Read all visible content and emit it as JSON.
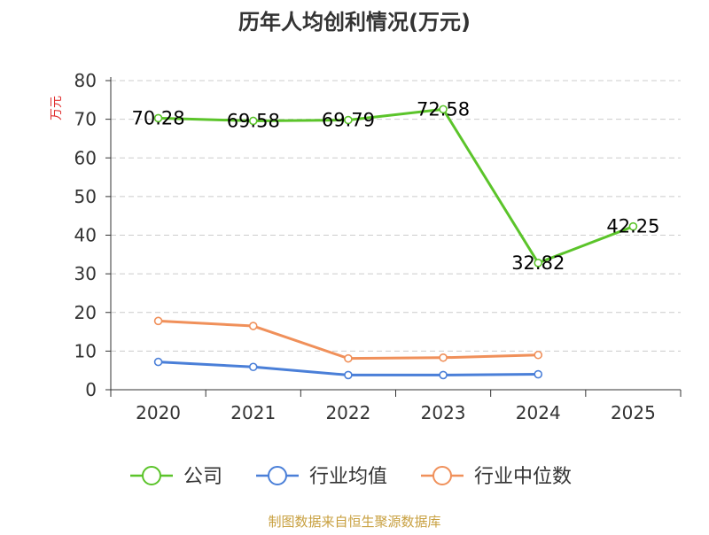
{
  "chart_data": {
    "type": "line",
    "title": "历年人均创利情况(万元)",
    "ylabel": "万元",
    "xlabel": "",
    "ylim": [
      0,
      80
    ],
    "yticks": [
      0,
      10,
      20,
      30,
      40,
      50,
      60,
      70,
      80
    ],
    "categories": [
      "2020",
      "2021",
      "2022",
      "2023",
      "2024",
      "2025"
    ],
    "grid": true,
    "legend_position": "bottom-center",
    "series": [
      {
        "name": "公司",
        "color": "#5bc42a",
        "values": [
          70.28,
          69.58,
          69.79,
          72.58,
          32.82,
          42.25
        ],
        "labels": [
          "70.28",
          "69.58",
          "69.79",
          "72.58",
          "32.82",
          "42.25"
        ],
        "show_labels": true
      },
      {
        "name": "行业均值",
        "color": "#4a7fd8",
        "values": [
          7.2,
          5.9,
          3.8,
          3.8,
          4.0,
          null
        ],
        "show_labels": false
      },
      {
        "name": "行业中位数",
        "color": "#f0905a",
        "values": [
          17.8,
          16.5,
          8.1,
          8.3,
          9.0,
          null
        ],
        "show_labels": false
      }
    ],
    "source": "制图数据来自恒生聚源数据库",
    "colors": {
      "title": "#333333",
      "axis": "#333333",
      "grid": "#cccccc",
      "ylabel": "#e03030",
      "source": "#c8a040"
    }
  }
}
